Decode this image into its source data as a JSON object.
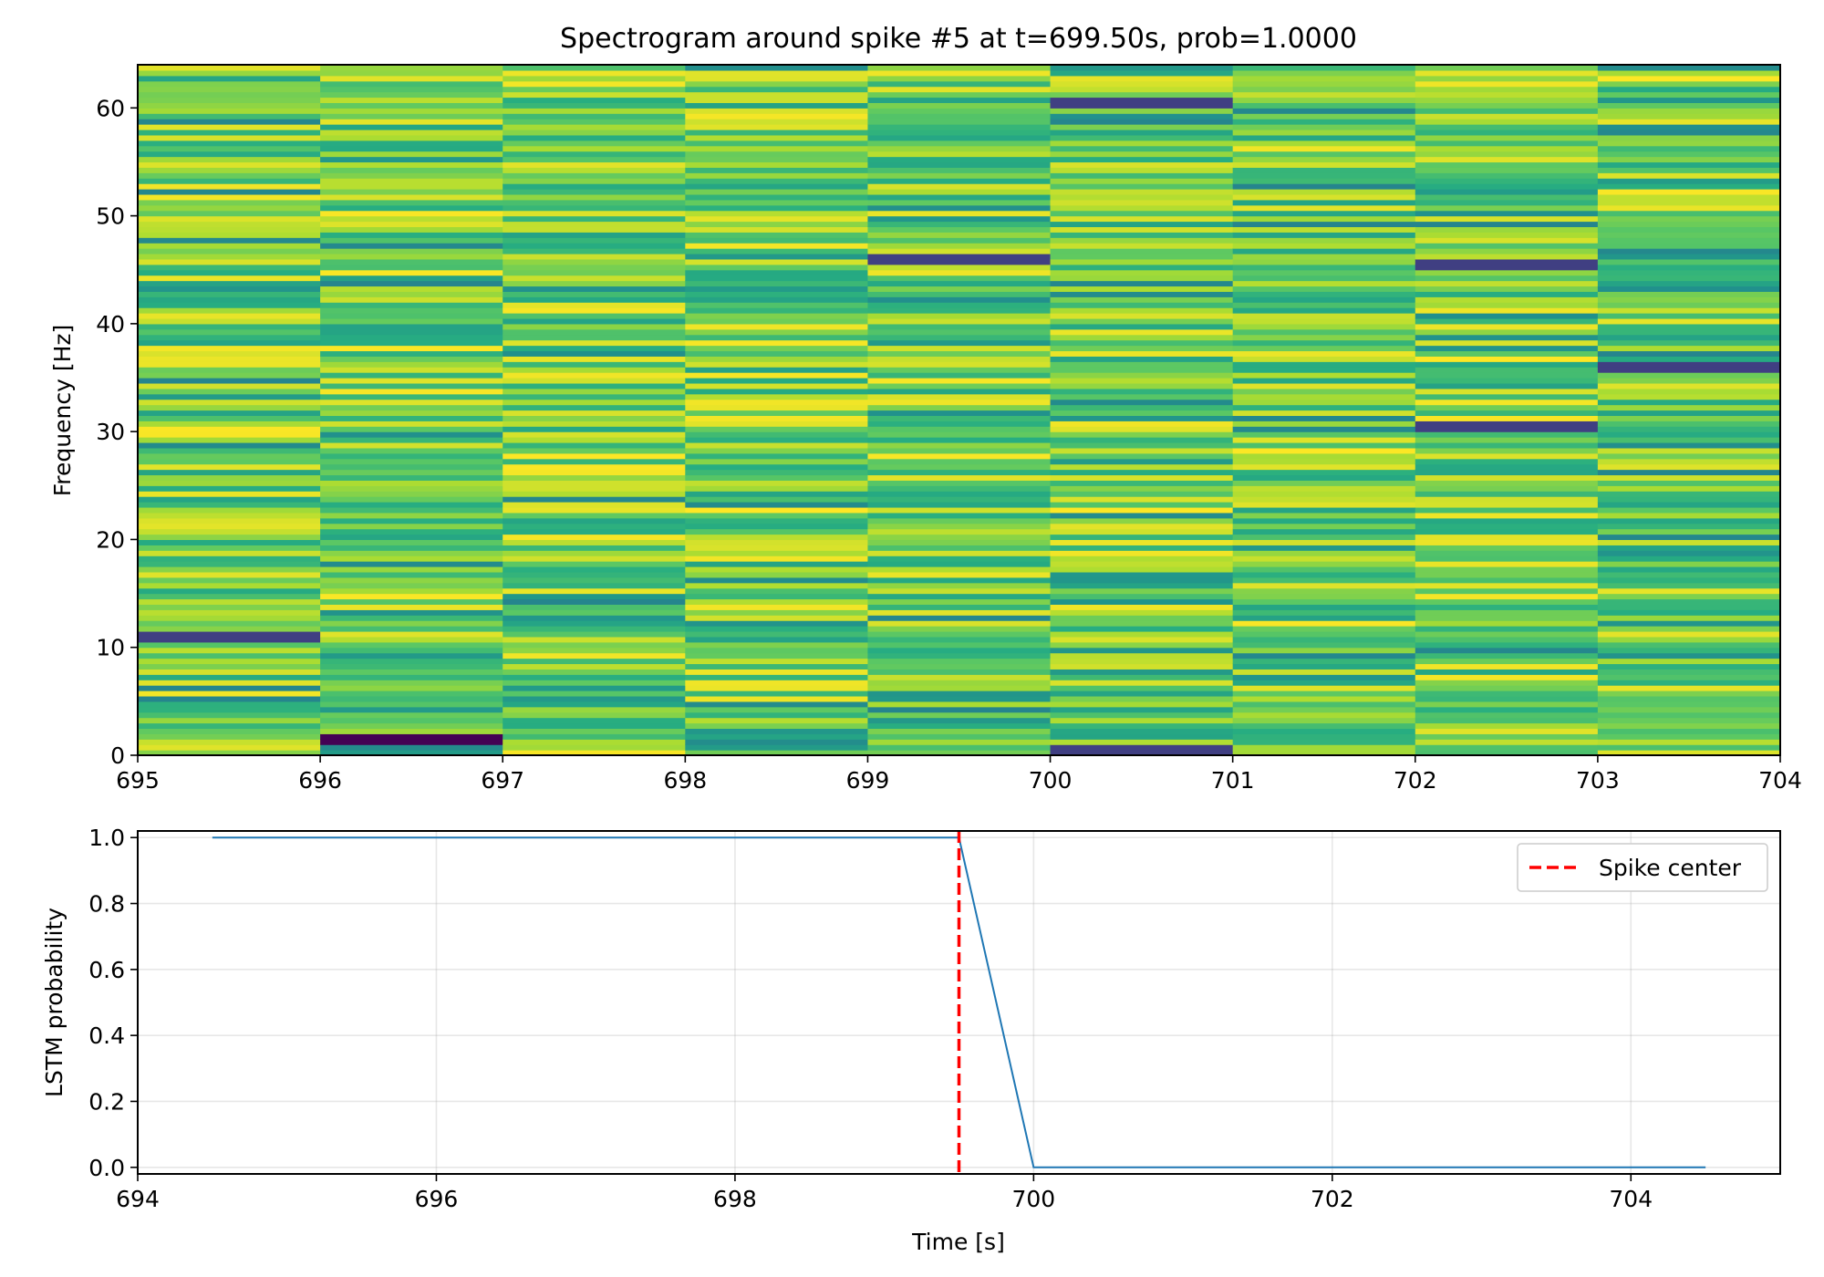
{
  "chart_data": [
    {
      "type": "heatmap",
      "title": "Spectrogram around spike #5 at t=699.50s, prob=1.0000",
      "xlabel": "",
      "ylabel": "Frequency [Hz]",
      "xlim": [
        695,
        704
      ],
      "ylim": [
        0,
        64
      ],
      "x_ticks": [
        "695",
        "696",
        "697",
        "698",
        "699",
        "700",
        "701",
        "702",
        "703",
        "704"
      ],
      "y_ticks": [
        "0",
        "10",
        "20",
        "30",
        "40",
        "50",
        "60"
      ],
      "time_bins": [
        [
          695,
          696
        ],
        [
          696,
          697
        ],
        [
          697,
          698
        ],
        [
          698,
          699
        ],
        [
          699,
          700
        ],
        [
          700,
          701
        ],
        [
          701,
          702
        ],
        [
          702,
          703
        ],
        [
          703,
          704
        ]
      ],
      "freq_bin_hz": 0.5,
      "colormap": "viridis",
      "color_range": [
        0,
        1
      ],
      "grid": false,
      "notable_dark_bands": [
        {
          "time_bin": [
            696,
            697
          ],
          "freq_hz": 1.5
        },
        {
          "time_bin": [
            700,
            701
          ],
          "freq_hz": 0.5
        },
        {
          "time_bin": [
            700,
            701
          ],
          "freq_hz": 60.5
        },
        {
          "time_bin": [
            699,
            700
          ],
          "freq_hz": 46
        },
        {
          "time_bin": [
            702,
            703
          ],
          "freq_hz": 30.5
        },
        {
          "time_bin": [
            702,
            703
          ],
          "freq_hz": 45.5
        },
        {
          "time_bin": [
            703,
            704
          ],
          "freq_hz": 36
        },
        {
          "time_bin": [
            695,
            696
          ],
          "freq_hz": 11
        }
      ]
    },
    {
      "type": "line",
      "title": "",
      "xlabel": "Time [s]",
      "ylabel": "LSTM probability",
      "xlim": [
        694,
        705
      ],
      "ylim": [
        -0.02,
        1.02
      ],
      "x_ticks": [
        "694",
        "696",
        "698",
        "700",
        "702",
        "704"
      ],
      "y_ticks": [
        "0.0",
        "0.2",
        "0.4",
        "0.6",
        "0.8",
        "1.0"
      ],
      "grid": true,
      "series": [
        {
          "x": [
            694.5,
            695,
            695.5,
            696,
            696.5,
            697,
            697.5,
            698,
            698.5,
            699,
            699.5,
            700,
            700.5,
            701,
            701.5,
            702,
            702.5,
            703,
            703.5,
            704,
            704.5
          ],
          "values": [
            1,
            1,
            1,
            1,
            1,
            1,
            1,
            1,
            1,
            1,
            1,
            0,
            0,
            0,
            0,
            0,
            0,
            0,
            0,
            0,
            0
          ],
          "color": "#1f77b4"
        }
      ],
      "vline": {
        "x": 699.5,
        "name": "Spike center",
        "color": "#ff0000",
        "style": "dashed"
      },
      "legend": {
        "placement": "top-right",
        "entries": [
          "Spike center"
        ]
      }
    }
  ]
}
